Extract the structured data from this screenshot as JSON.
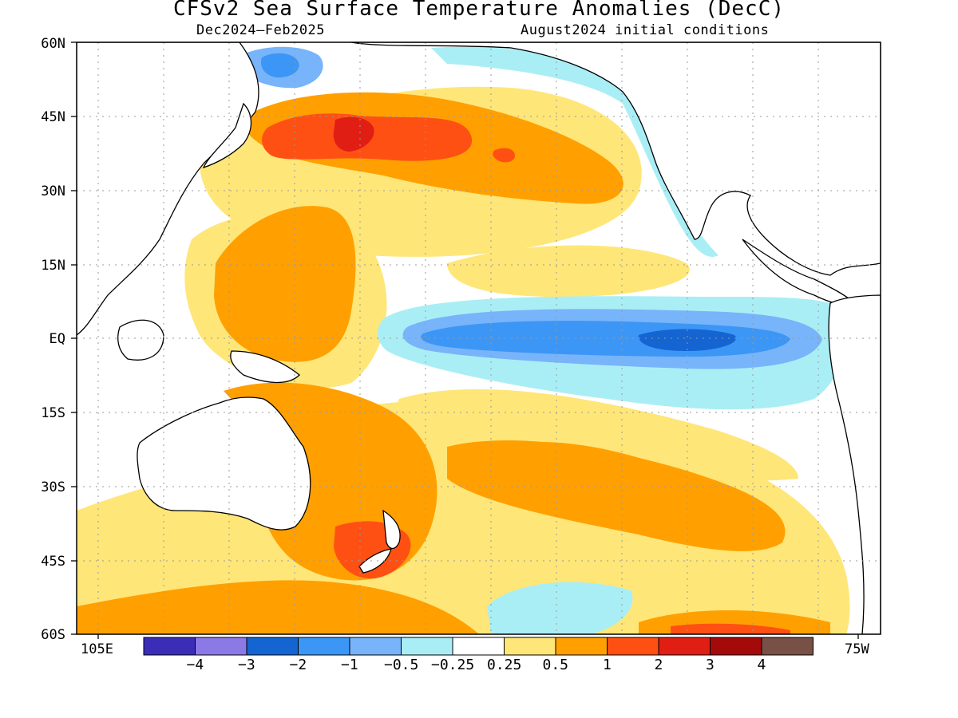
{
  "title": "CFSv2 Sea Surface Temperature Anomalies (DecC)",
  "period": "Dec2024–Feb2025",
  "initial_conditions": "August2024 initial conditions",
  "lat_labels": [
    "60N",
    "45N",
    "30N",
    "15N",
    "EQ",
    "15S",
    "30S",
    "45S",
    "60S"
  ],
  "lon_labels": {
    "west": "105E",
    "east": "75W"
  },
  "colorbar": {
    "colors": [
      "#3b2db8",
      "#8b7ae6",
      "#1464d2",
      "#3c96f5",
      "#78b4fa",
      "#aaeef5",
      "#ffffff",
      "#ffe678",
      "#ffa000",
      "#ff5014",
      "#e11e14",
      "#a50a0a",
      "#785046"
    ],
    "labels": [
      "−4",
      "−3",
      "−2",
      "−1",
      "−0.5",
      "−0.25",
      "0.25",
      "0.5",
      "1",
      "2",
      "3",
      "4"
    ]
  }
}
